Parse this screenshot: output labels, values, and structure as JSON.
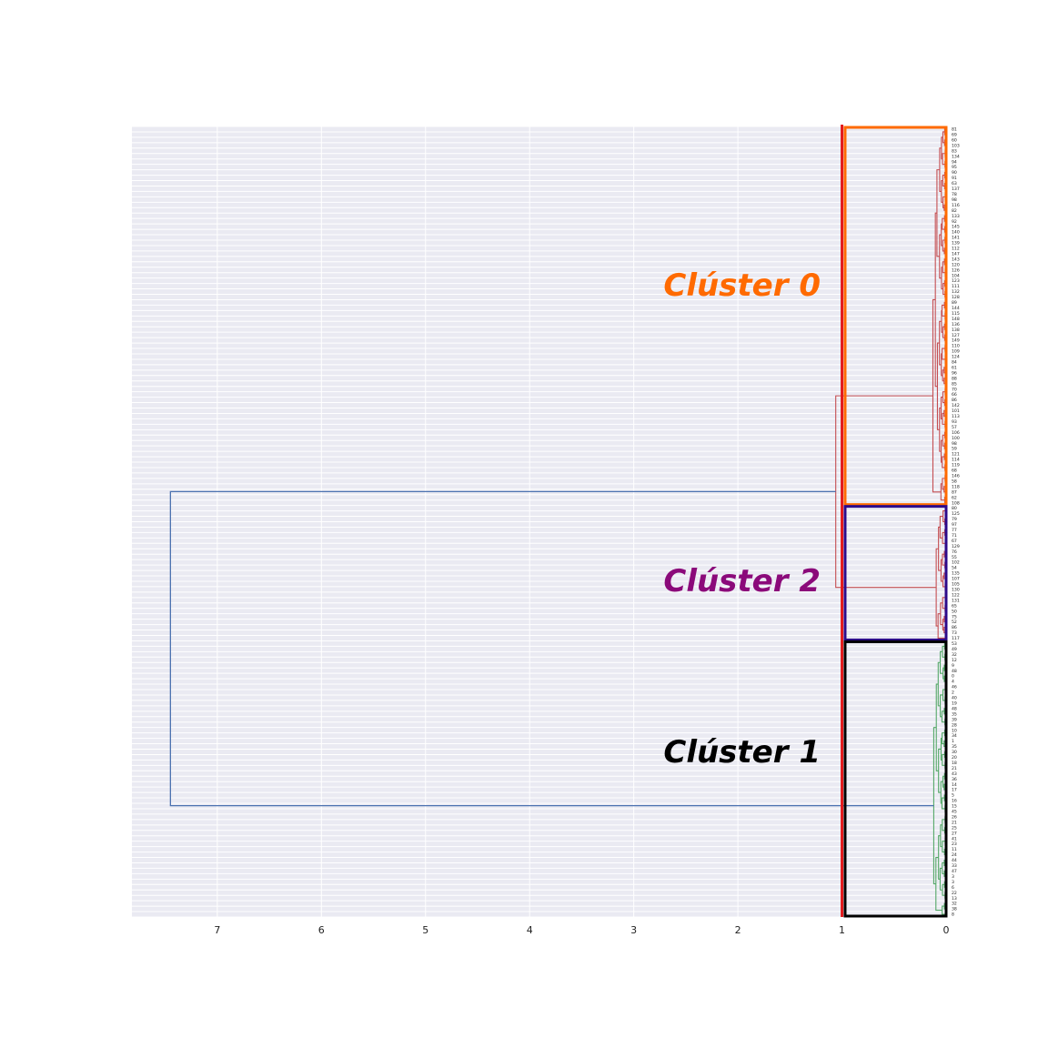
{
  "chart_data": {
    "type": "dendrogram",
    "orientation": "left",
    "xlim": [
      7.82,
      0
    ],
    "x_ticks": [
      "7",
      "6",
      "5",
      "4",
      "3",
      "2",
      "1",
      "0"
    ],
    "x_tick_values": [
      7,
      6,
      5,
      4,
      3,
      2,
      1,
      0
    ],
    "cut_threshold": 1.0,
    "grid": true,
    "colors": {
      "background": "#eaeaf2",
      "grid": "#ffffff",
      "root_link": "#4c72b0",
      "cut_line": "#e31a1c",
      "cluster_0": "#ff6a00",
      "cluster_2": "#8b0a7a",
      "cluster_1": "#000000",
      "cluster_0_box": "#ff6a00",
      "cluster_2_box": "#2d0a8a",
      "cluster_1_box": "#000000",
      "branch_red": "#c44e52",
      "branch_green": "#55a868"
    },
    "clusters": [
      {
        "label": "Clúster 0",
        "branch_color": "#c44e52",
        "leaves": [
          "81",
          "69",
          "60",
          "103",
          "83",
          "134",
          "94",
          "95",
          "90",
          "91",
          "63",
          "137",
          "78",
          "98",
          "116",
          "82",
          "133",
          "92",
          "145",
          "140",
          "141",
          "139",
          "112",
          "147",
          "143",
          "120",
          "126",
          "104",
          "123",
          "111",
          "132",
          "128",
          "89",
          "144",
          "115",
          "148",
          "136",
          "138",
          "127",
          "149",
          "110",
          "109",
          "124",
          "84",
          "61",
          "96",
          "88",
          "85",
          "70",
          "66",
          "86",
          "142",
          "101",
          "113",
          "93",
          "57",
          "106",
          "100",
          "98",
          "59",
          "121",
          "114",
          "119",
          "68",
          "146",
          "58",
          "118",
          "87",
          "62",
          "108"
        ],
        "merges": [
          0,
          0.02,
          0.04,
          0.05,
          0.07,
          0.09,
          0.11,
          0.14,
          0.17,
          0.2,
          0.25,
          0.3,
          0.38,
          0.42,
          0.48,
          0.62,
          0.72,
          0.95
        ]
      },
      {
        "label": "Clúster 2",
        "branch_color": "#c44e52",
        "leaves": [
          "80",
          "125",
          "79",
          "97",
          "77",
          "71",
          "67",
          "129",
          "76",
          "55",
          "102",
          "54",
          "135",
          "107",
          "105",
          "130",
          "122",
          "131",
          "65",
          "50",
          "75",
          "52",
          "86",
          "73",
          "117"
        ],
        "merges": [
          0,
          0.02,
          0.04,
          0.06,
          0.08,
          0.1,
          0.13,
          0.17,
          0.22,
          0.3,
          0.42,
          0.95
        ]
      },
      {
        "label": "Clúster 1",
        "branch_color": "#55a868",
        "leaves": [
          "53",
          "49",
          "32",
          "12",
          "9",
          "48",
          "0",
          "4",
          "46",
          "2",
          "40",
          "19",
          "48",
          "35",
          "39",
          "28",
          "10",
          "34",
          "1",
          "35",
          "30",
          "20",
          "18",
          "21",
          "43",
          "36",
          "14",
          "17",
          "5",
          "16",
          "15",
          "45",
          "26",
          "21",
          "25",
          "27",
          "41",
          "23",
          "11",
          "24",
          "44",
          "33",
          "47",
          "3",
          "3",
          "6",
          "22",
          "13",
          "32",
          "38",
          "8"
        ],
        "merges": [
          0,
          0.02,
          0.04,
          0.06,
          0.08,
          0.1,
          0.13,
          0.17,
          0.22,
          0.3,
          0.45,
          0.68,
          0.9
        ]
      }
    ],
    "top_links": {
      "clusters_0_2_merge": 1.06,
      "root_merge": 7.45
    }
  }
}
